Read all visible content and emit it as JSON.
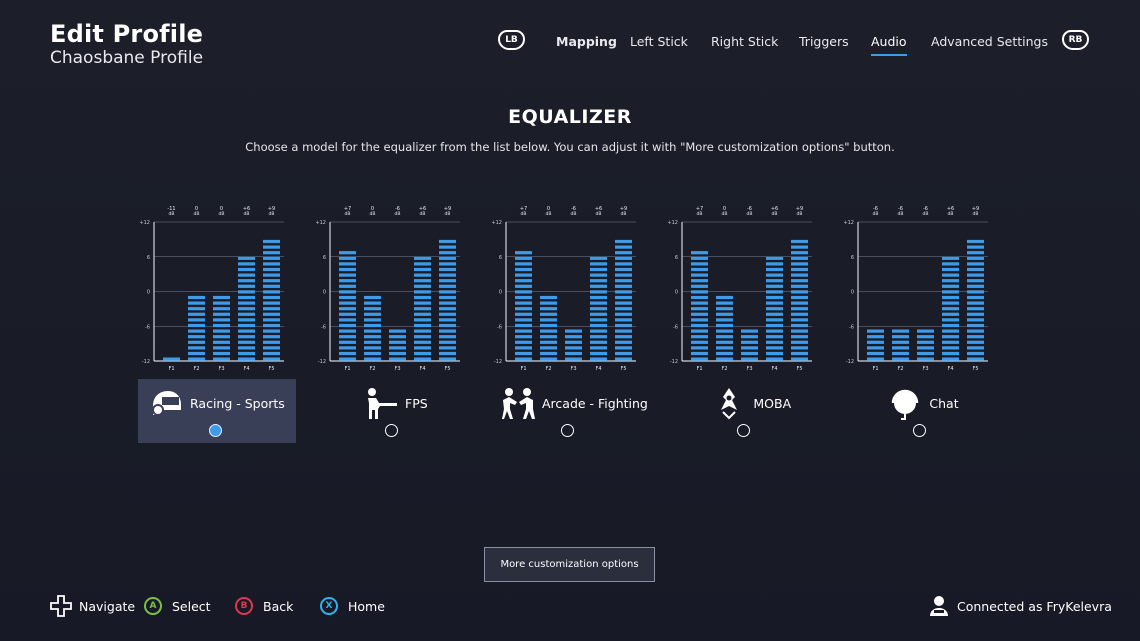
{
  "header": {
    "title": "Edit Profile",
    "subtitle": "Chaosbane Profile"
  },
  "nav": {
    "left_bumper": "LB",
    "right_bumper": "RB",
    "tabs": [
      {
        "label": "Mapping",
        "active": false
      },
      {
        "label": "Left Stick",
        "active": false
      },
      {
        "label": "Right Stick",
        "active": false
      },
      {
        "label": "Triggers",
        "active": false
      },
      {
        "label": "Audio",
        "active": true
      },
      {
        "label": "Advanced Settings",
        "active": false
      }
    ]
  },
  "equalizer": {
    "title": "EQUALIZER",
    "description": "Choose a model for the equalizer from the list below. You can adjust it with \"More customization options\" button.",
    "axis_ticks": [
      "+12",
      "6",
      "0",
      "-6",
      "-12"
    ],
    "bands": [
      "F1",
      "F2",
      "F3",
      "F4",
      "F5"
    ],
    "accent_color": "#3d9be9",
    "presets": [
      {
        "name": "Racing - Sports",
        "icon": "racing-helmet-icon",
        "selected": true,
        "values": [
          -11,
          0,
          0,
          6,
          9
        ],
        "value_labels": [
          "-11",
          "0",
          "0",
          "+6",
          "+9"
        ]
      },
      {
        "name": "FPS",
        "icon": "fps-shooter-icon",
        "selected": false,
        "values": [
          7,
          0,
          -6,
          6,
          9
        ],
        "value_labels": [
          "+7",
          "0",
          "-6",
          "+6",
          "+9"
        ]
      },
      {
        "name": "Arcade - Fighting",
        "icon": "fighters-icon",
        "selected": false,
        "values": [
          7,
          0,
          -6,
          6,
          9
        ],
        "value_labels": [
          "+7",
          "0",
          "-6",
          "+6",
          "+9"
        ]
      },
      {
        "name": "MOBA",
        "icon": "moba-hero-icon",
        "selected": false,
        "values": [
          7,
          0,
          -6,
          6,
          9
        ],
        "value_labels": [
          "+7",
          "0",
          "-6",
          "+6",
          "+9"
        ]
      },
      {
        "name": "Chat",
        "icon": "headset-icon",
        "selected": false,
        "values": [
          -6,
          -6,
          -6,
          6,
          9
        ],
        "value_labels": [
          "-6",
          "-6",
          "-6",
          "+6",
          "+9"
        ]
      }
    ],
    "more_button": "More customization options"
  },
  "footer": {
    "navigate": "Navigate",
    "select": {
      "key": "A",
      "label": "Select",
      "color": "#7ac143"
    },
    "back": {
      "key": "B",
      "label": "Back",
      "color": "#e0384b"
    },
    "home": {
      "key": "X",
      "label": "Home",
      "color": "#2fb3e6"
    },
    "connection": "Connected as FryKelevra"
  }
}
